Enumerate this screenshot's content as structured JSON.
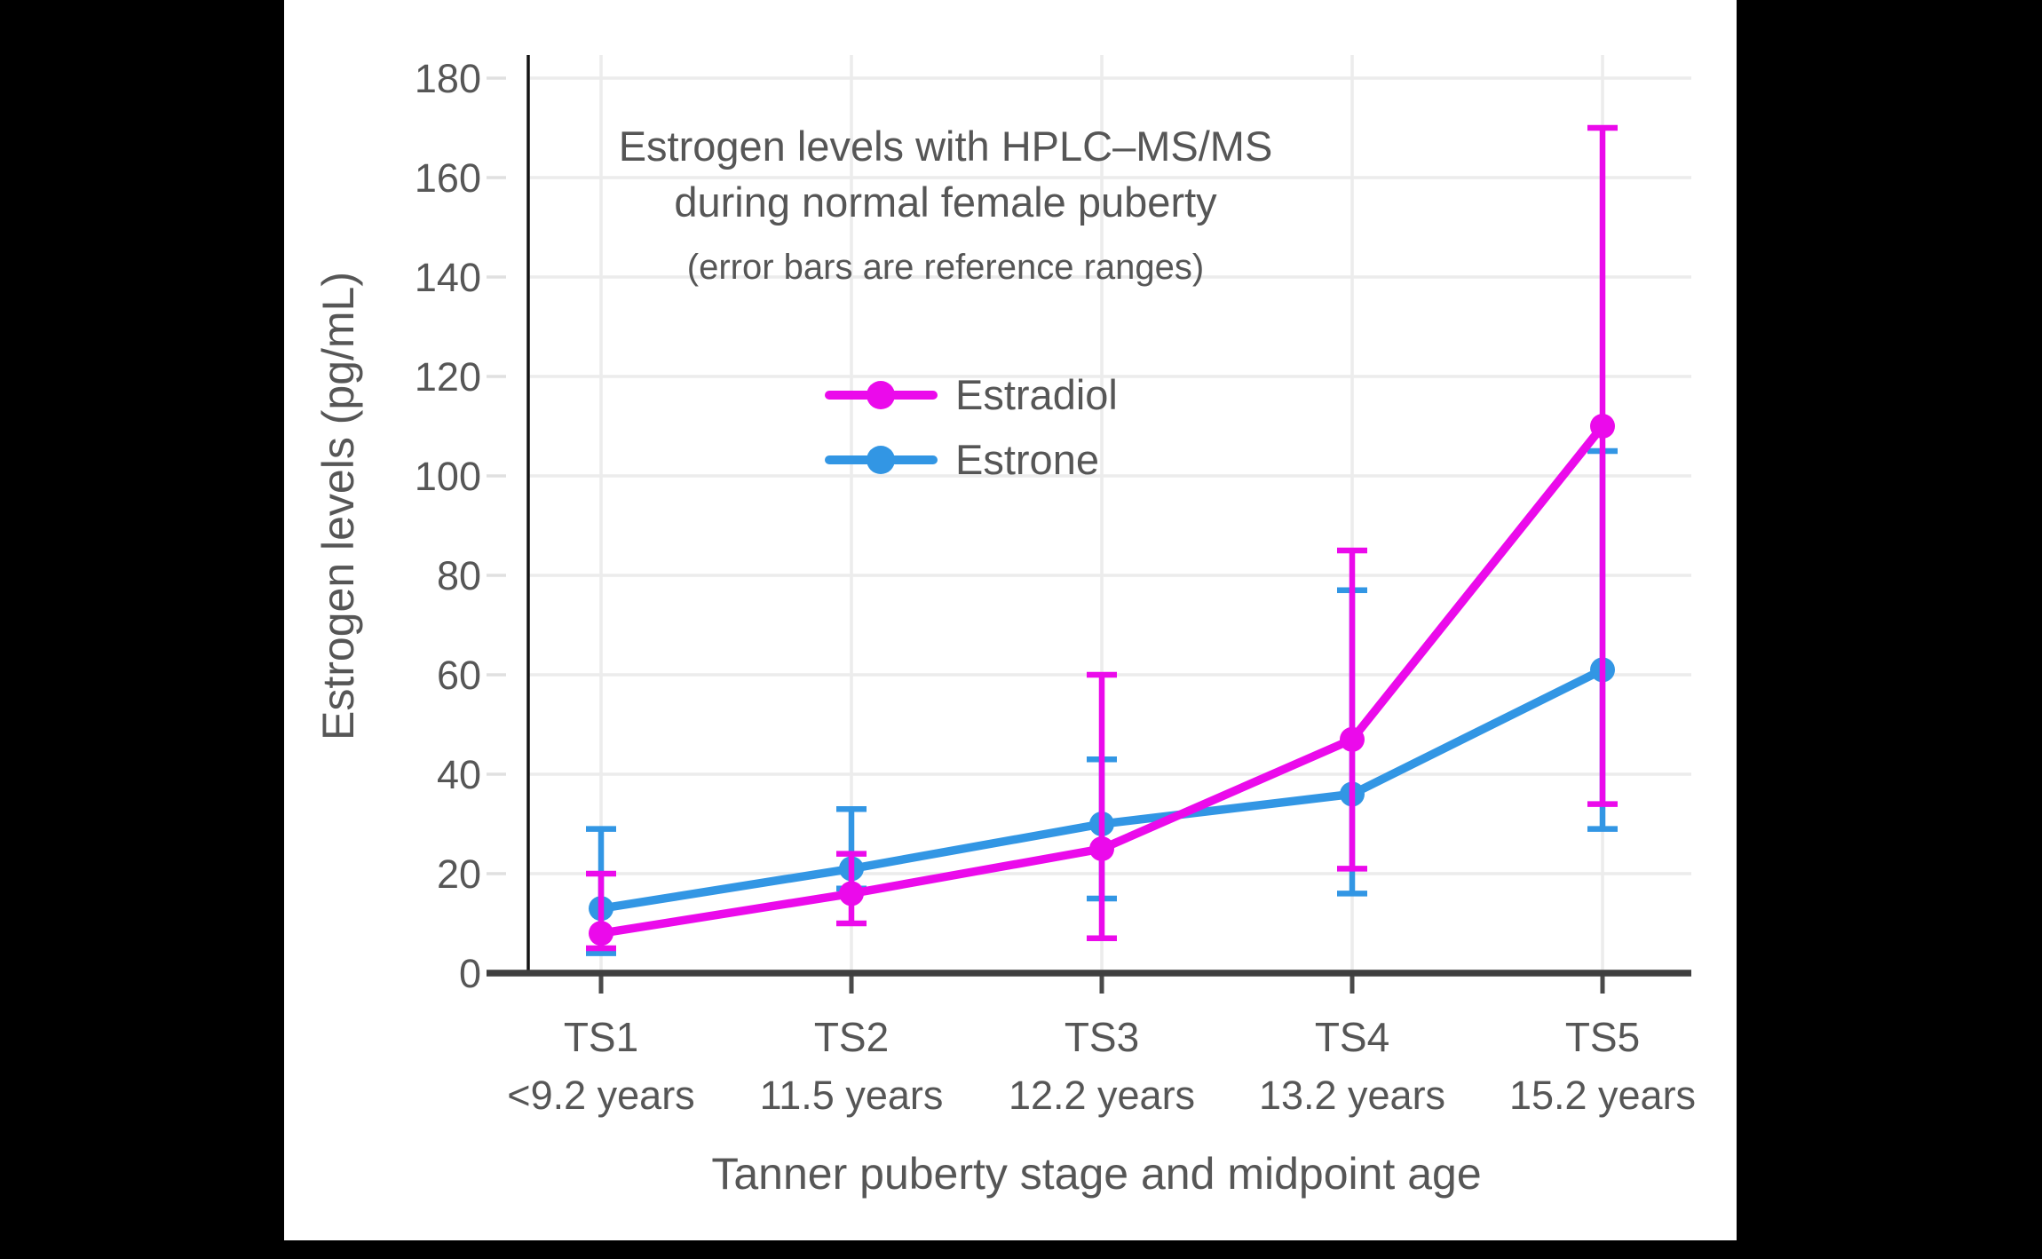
{
  "figure": {
    "background_color": "#000000",
    "plot_background_color": "#ffffff",
    "text_color": "#565656",
    "gridline_color": "#ececec"
  },
  "chart_data": {
    "type": "line",
    "title_line1": "Estrogen levels with HPLC–MS/MS",
    "title_line2": "during normal female puberty",
    "subtitle": "(error bars are reference ranges)",
    "xlabel": "Tanner puberty stage and midpoint age",
    "ylabel": "Estrogen levels (pg/mL)",
    "units": "pg/mL",
    "grid": true,
    "legend_position": "upper left inside plot",
    "error_bar_meaning": "reference ranges",
    "categories": [
      "TS1",
      "TS2",
      "TS3",
      "TS4",
      "TS5"
    ],
    "category_ages": [
      "<9.2 years",
      "11.5 years",
      "12.2 years",
      "13.2 years",
      "15.2 years"
    ],
    "y_ticks": [
      0,
      20,
      40,
      60,
      80,
      100,
      120,
      140,
      160,
      180
    ],
    "ylim": [
      0,
      185
    ],
    "series": [
      {
        "name": "Estradiol",
        "color": "#EB0AEB",
        "values": [
          8,
          16,
          25,
          47,
          110
        ],
        "range_low": [
          5,
          10,
          7,
          21,
          34
        ],
        "range_high": [
          20,
          24,
          60,
          85,
          170
        ]
      },
      {
        "name": "Estrone",
        "color": "#3296E4",
        "values": [
          13,
          21,
          30,
          36,
          61
        ],
        "range_low": [
          4,
          17,
          15,
          16,
          29
        ],
        "range_high": [
          29,
          33,
          43,
          77,
          105
        ]
      }
    ]
  }
}
